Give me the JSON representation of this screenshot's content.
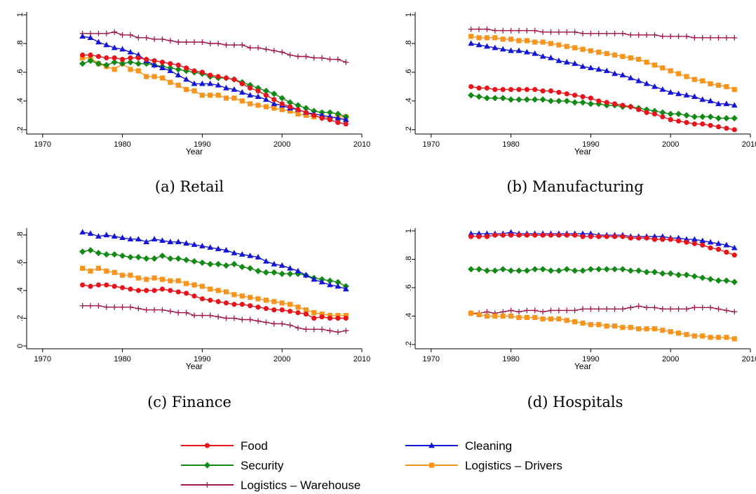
{
  "legend": {
    "items": [
      {
        "name": "Food",
        "color": "#e8141b",
        "marker": "circle"
      },
      {
        "name": "Cleaning",
        "color": "#1515d6",
        "marker": "triangle"
      },
      {
        "name": "Security",
        "color": "#138a15",
        "marker": "diamond"
      },
      {
        "name": "Logistics – Drivers",
        "color": "#f7941d",
        "marker": "square"
      },
      {
        "name": "Logistics – Warehouse",
        "color": "#a0174d",
        "marker": "plus"
      }
    ]
  },
  "chart_data": [
    {
      "type": "line",
      "caption": "(a) Retail",
      "xlabel": "Year",
      "ylabel": "",
      "xlim": [
        1968,
        2010
      ],
      "ylim": [
        0.17,
        1.02
      ],
      "xticks": [
        1970,
        1980,
        1990,
        2000,
        2010
      ],
      "yticks": [
        0.2,
        0.4,
        0.6,
        0.8,
        1
      ],
      "ytick_labels": [
        ".2",
        ".4",
        ".6",
        ".8",
        "1"
      ],
      "x_start": 1975,
      "x_end": 2008,
      "series": [
        {
          "name": "Food",
          "values": [
            0.72,
            0.72,
            0.71,
            0.7,
            0.7,
            0.69,
            0.7,
            0.7,
            0.69,
            0.68,
            0.67,
            0.66,
            0.65,
            0.63,
            0.61,
            0.6,
            0.58,
            0.57,
            0.56,
            0.55,
            0.52,
            0.49,
            0.47,
            0.44,
            0.41,
            0.38,
            0.36,
            0.34,
            0.32,
            0.3,
            0.28,
            0.27,
            0.25,
            0.24
          ]
        },
        {
          "name": "Cleaning",
          "values": [
            0.85,
            0.84,
            0.81,
            0.79,
            0.77,
            0.76,
            0.74,
            0.72,
            0.68,
            0.65,
            0.63,
            0.61,
            0.58,
            0.55,
            0.52,
            0.52,
            0.52,
            0.51,
            0.49,
            0.48,
            0.46,
            0.44,
            0.43,
            0.41,
            0.38,
            0.37,
            0.35,
            0.34,
            0.32,
            0.31,
            0.3,
            0.29,
            0.28,
            0.27
          ]
        },
        {
          "name": "Security",
          "values": [
            0.66,
            0.68,
            0.66,
            0.65,
            0.67,
            0.66,
            0.67,
            0.66,
            0.66,
            0.65,
            0.64,
            0.63,
            0.62,
            0.61,
            0.6,
            0.59,
            0.57,
            0.56,
            0.56,
            0.55,
            0.53,
            0.51,
            0.49,
            0.47,
            0.45,
            0.42,
            0.39,
            0.37,
            0.35,
            0.33,
            0.32,
            0.32,
            0.31,
            0.29
          ]
        },
        {
          "name": "Logistics – Drivers",
          "values": [
            0.7,
            0.7,
            0.66,
            0.64,
            0.62,
            0.66,
            0.62,
            0.61,
            0.57,
            0.57,
            0.56,
            0.53,
            0.51,
            0.48,
            0.47,
            0.44,
            0.44,
            0.44,
            0.42,
            0.42,
            0.4,
            0.38,
            0.37,
            0.36,
            0.35,
            0.34,
            0.33,
            0.31,
            0.3,
            0.29,
            0.29,
            0.28,
            0.29,
            0.29
          ]
        },
        {
          "name": "Logistics – Warehouse",
          "values": [
            0.87,
            0.87,
            0.87,
            0.87,
            0.88,
            0.86,
            0.86,
            0.84,
            0.84,
            0.83,
            0.83,
            0.82,
            0.81,
            0.81,
            0.81,
            0.81,
            0.8,
            0.8,
            0.79,
            0.79,
            0.79,
            0.77,
            0.77,
            0.76,
            0.75,
            0.74,
            0.72,
            0.71,
            0.71,
            0.7,
            0.7,
            0.69,
            0.69,
            0.67
          ]
        }
      ]
    },
    {
      "type": "line",
      "caption": "(b) Manufacturing",
      "xlabel": "Year",
      "ylabel": "",
      "xlim": [
        1968,
        2010
      ],
      "ylim": [
        0.17,
        1.02
      ],
      "xticks": [
        1970,
        1980,
        1990,
        2000,
        2010
      ],
      "yticks": [
        0.2,
        0.4,
        0.6,
        0.8,
        1
      ],
      "ytick_labels": [
        ".2",
        ".4",
        ".6",
        ".8",
        "1"
      ],
      "x_start": 1975,
      "x_end": 2008,
      "series": [
        {
          "name": "Food",
          "values": [
            0.5,
            0.49,
            0.49,
            0.48,
            0.48,
            0.48,
            0.48,
            0.48,
            0.48,
            0.47,
            0.47,
            0.46,
            0.45,
            0.44,
            0.43,
            0.42,
            0.4,
            0.39,
            0.38,
            0.37,
            0.36,
            0.34,
            0.32,
            0.31,
            0.29,
            0.27,
            0.26,
            0.25,
            0.24,
            0.24,
            0.23,
            0.22,
            0.21,
            0.2
          ]
        },
        {
          "name": "Cleaning",
          "values": [
            0.8,
            0.79,
            0.78,
            0.77,
            0.76,
            0.75,
            0.75,
            0.74,
            0.73,
            0.71,
            0.7,
            0.68,
            0.67,
            0.66,
            0.64,
            0.63,
            0.62,
            0.61,
            0.59,
            0.58,
            0.56,
            0.54,
            0.52,
            0.5,
            0.48,
            0.46,
            0.45,
            0.44,
            0.43,
            0.41,
            0.4,
            0.38,
            0.38,
            0.37
          ]
        },
        {
          "name": "Security",
          "values": [
            0.44,
            0.43,
            0.42,
            0.42,
            0.42,
            0.41,
            0.41,
            0.41,
            0.41,
            0.41,
            0.4,
            0.4,
            0.4,
            0.39,
            0.39,
            0.38,
            0.38,
            0.37,
            0.37,
            0.36,
            0.36,
            0.35,
            0.34,
            0.33,
            0.32,
            0.31,
            0.31,
            0.3,
            0.29,
            0.29,
            0.29,
            0.28,
            0.28,
            0.28
          ]
        },
        {
          "name": "Logistics – Drivers",
          "values": [
            0.85,
            0.84,
            0.84,
            0.84,
            0.83,
            0.83,
            0.82,
            0.82,
            0.81,
            0.81,
            0.8,
            0.79,
            0.78,
            0.77,
            0.76,
            0.75,
            0.74,
            0.73,
            0.72,
            0.71,
            0.7,
            0.69,
            0.67,
            0.65,
            0.63,
            0.61,
            0.59,
            0.57,
            0.55,
            0.54,
            0.52,
            0.51,
            0.5,
            0.48
          ]
        },
        {
          "name": "Logistics – Warehouse",
          "values": [
            0.9,
            0.9,
            0.9,
            0.89,
            0.89,
            0.89,
            0.89,
            0.89,
            0.89,
            0.88,
            0.88,
            0.88,
            0.88,
            0.88,
            0.87,
            0.87,
            0.87,
            0.87,
            0.87,
            0.87,
            0.86,
            0.86,
            0.86,
            0.86,
            0.85,
            0.85,
            0.85,
            0.85,
            0.84,
            0.84,
            0.84,
            0.84,
            0.84,
            0.84
          ]
        }
      ]
    },
    {
      "type": "line",
      "caption": "(c) Finance",
      "xlabel": "Year",
      "ylabel": "",
      "xlim": [
        1968,
        2010
      ],
      "ylim": [
        -0.02,
        0.85
      ],
      "xticks": [
        1970,
        1980,
        1990,
        2000,
        2010
      ],
      "yticks": [
        0,
        0.2,
        0.4,
        0.6,
        0.8
      ],
      "ytick_labels": [
        "0",
        ".2",
        ".4",
        ".6",
        ".8"
      ],
      "x_start": 1975,
      "x_end": 2008,
      "series": [
        {
          "name": "Food",
          "values": [
            0.44,
            0.43,
            0.44,
            0.44,
            0.43,
            0.42,
            0.41,
            0.4,
            0.4,
            0.4,
            0.41,
            0.4,
            0.39,
            0.38,
            0.36,
            0.34,
            0.33,
            0.32,
            0.31,
            0.3,
            0.3,
            0.29,
            0.28,
            0.27,
            0.26,
            0.26,
            0.25,
            0.24,
            0.23,
            0.2,
            0.21,
            0.2,
            0.2,
            0.2
          ]
        },
        {
          "name": "Cleaning",
          "values": [
            0.82,
            0.81,
            0.79,
            0.8,
            0.79,
            0.78,
            0.77,
            0.77,
            0.75,
            0.77,
            0.76,
            0.75,
            0.75,
            0.74,
            0.73,
            0.72,
            0.71,
            0.7,
            0.69,
            0.67,
            0.66,
            0.65,
            0.64,
            0.61,
            0.59,
            0.58,
            0.56,
            0.54,
            0.51,
            0.48,
            0.46,
            0.44,
            0.43,
            0.41
          ]
        },
        {
          "name": "Security",
          "values": [
            0.68,
            0.69,
            0.67,
            0.66,
            0.66,
            0.65,
            0.64,
            0.64,
            0.63,
            0.63,
            0.65,
            0.63,
            0.63,
            0.62,
            0.61,
            0.6,
            0.59,
            0.59,
            0.58,
            0.59,
            0.57,
            0.56,
            0.54,
            0.53,
            0.53,
            0.52,
            0.52,
            0.52,
            0.51,
            0.49,
            0.48,
            0.47,
            0.46,
            0.43
          ]
        },
        {
          "name": "Logistics – Drivers",
          "values": [
            0.56,
            0.54,
            0.56,
            0.54,
            0.53,
            0.51,
            0.51,
            0.49,
            0.48,
            0.49,
            0.48,
            0.47,
            0.47,
            0.45,
            0.44,
            0.43,
            0.41,
            0.4,
            0.39,
            0.37,
            0.36,
            0.35,
            0.34,
            0.33,
            0.32,
            0.31,
            0.3,
            0.28,
            0.26,
            0.24,
            0.23,
            0.22,
            0.22,
            0.22
          ]
        },
        {
          "name": "Logistics – Warehouse",
          "values": [
            0.29,
            0.29,
            0.29,
            0.28,
            0.28,
            0.28,
            0.28,
            0.27,
            0.26,
            0.26,
            0.26,
            0.25,
            0.24,
            0.24,
            0.22,
            0.22,
            0.22,
            0.21,
            0.2,
            0.2,
            0.19,
            0.19,
            0.18,
            0.17,
            0.16,
            0.16,
            0.15,
            0.13,
            0.12,
            0.12,
            0.12,
            0.11,
            0.1,
            0.11
          ]
        }
      ]
    },
    {
      "type": "line",
      "caption": "(d) Hospitals",
      "xlabel": "Year",
      "ylabel": "",
      "xlim": [
        1968,
        2010
      ],
      "ylim": [
        0.17,
        1.02
      ],
      "xticks": [
        1970,
        1980,
        1990,
        2000,
        2010
      ],
      "yticks": [
        0.2,
        0.4,
        0.6,
        0.8,
        1
      ],
      "ytick_labels": [
        ".2",
        ".4",
        ".6",
        ".8",
        "1"
      ],
      "x_start": 1975,
      "x_end": 2008,
      "series": [
        {
          "name": "Food",
          "values": [
            0.96,
            0.96,
            0.96,
            0.97,
            0.97,
            0.97,
            0.97,
            0.97,
            0.97,
            0.97,
            0.97,
            0.97,
            0.97,
            0.97,
            0.96,
            0.96,
            0.96,
            0.96,
            0.96,
            0.96,
            0.95,
            0.95,
            0.95,
            0.94,
            0.94,
            0.94,
            0.93,
            0.92,
            0.91,
            0.9,
            0.88,
            0.87,
            0.85,
            0.83
          ]
        },
        {
          "name": "Cleaning",
          "values": [
            0.98,
            0.98,
            0.98,
            0.98,
            0.98,
            0.99,
            0.98,
            0.98,
            0.98,
            0.98,
            0.98,
            0.98,
            0.98,
            0.98,
            0.98,
            0.98,
            0.97,
            0.97,
            0.97,
            0.97,
            0.96,
            0.96,
            0.96,
            0.96,
            0.96,
            0.95,
            0.95,
            0.94,
            0.94,
            0.93,
            0.92,
            0.91,
            0.9,
            0.88
          ]
        },
        {
          "name": "Security",
          "values": [
            0.73,
            0.73,
            0.72,
            0.72,
            0.73,
            0.72,
            0.72,
            0.72,
            0.73,
            0.73,
            0.72,
            0.72,
            0.73,
            0.72,
            0.72,
            0.73,
            0.73,
            0.73,
            0.73,
            0.73,
            0.72,
            0.72,
            0.71,
            0.71,
            0.7,
            0.7,
            0.69,
            0.69,
            0.68,
            0.67,
            0.66,
            0.65,
            0.65,
            0.64
          ]
        },
        {
          "name": "Logistics – Drivers",
          "values": [
            0.42,
            0.41,
            0.4,
            0.4,
            0.4,
            0.4,
            0.39,
            0.39,
            0.39,
            0.38,
            0.38,
            0.38,
            0.37,
            0.36,
            0.35,
            0.34,
            0.34,
            0.33,
            0.33,
            0.32,
            0.32,
            0.31,
            0.31,
            0.31,
            0.3,
            0.29,
            0.28,
            0.27,
            0.26,
            0.26,
            0.25,
            0.25,
            0.25,
            0.24
          ]
        },
        {
          "name": "Logistics – Warehouse",
          "values": [
            0.42,
            0.42,
            0.43,
            0.42,
            0.43,
            0.44,
            0.43,
            0.44,
            0.44,
            0.43,
            0.44,
            0.44,
            0.44,
            0.44,
            0.45,
            0.45,
            0.45,
            0.45,
            0.45,
            0.45,
            0.46,
            0.47,
            0.46,
            0.46,
            0.45,
            0.45,
            0.45,
            0.45,
            0.46,
            0.46,
            0.46,
            0.45,
            0.44,
            0.43
          ]
        }
      ]
    }
  ]
}
